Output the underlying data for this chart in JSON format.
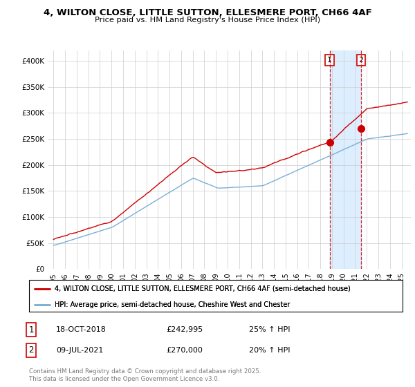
{
  "title": "4, WILTON CLOSE, LITTLE SUTTON, ELLESMERE PORT, CH66 4AF",
  "subtitle": "Price paid vs. HM Land Registry's House Price Index (HPI)",
  "legend_line1": "4, WILTON CLOSE, LITTLE SUTTON, ELLESMERE PORT, CH66 4AF (semi-detached house)",
  "legend_line2": "HPI: Average price, semi-detached house, Cheshire West and Chester",
  "footer": "Contains HM Land Registry data © Crown copyright and database right 2025.\nThis data is licensed under the Open Government Licence v3.0.",
  "red_color": "#cc0000",
  "blue_color": "#7aafd4",
  "marker1_date": "18-OCT-2018",
  "marker1_price": "£242,995",
  "marker1_hpi": "25% ↑ HPI",
  "marker1_x": 2018.8,
  "marker1_y": 242995,
  "marker2_date": "09-JUL-2021",
  "marker2_price": "£270,000",
  "marker2_hpi": "20% ↑ HPI",
  "marker2_x": 2021.5,
  "marker2_y": 270000,
  "ylim": [
    0,
    420000
  ],
  "xlim_start": 1994.5,
  "xlim_end": 2025.8,
  "yticks": [
    0,
    50000,
    100000,
    150000,
    200000,
    250000,
    300000,
    350000,
    400000
  ],
  "ytick_labels": [
    "£0",
    "£50K",
    "£100K",
    "£150K",
    "£200K",
    "£250K",
    "£300K",
    "£350K",
    "£400K"
  ],
  "xticks": [
    1995,
    1996,
    1997,
    1998,
    1999,
    2000,
    2001,
    2002,
    2003,
    2004,
    2005,
    2006,
    2007,
    2008,
    2009,
    2010,
    2011,
    2012,
    2013,
    2014,
    2015,
    2016,
    2017,
    2018,
    2019,
    2020,
    2021,
    2022,
    2023,
    2024,
    2025
  ],
  "background_color": "#ffffff",
  "grid_color": "#cccccc",
  "span_color": "#ddeeff"
}
